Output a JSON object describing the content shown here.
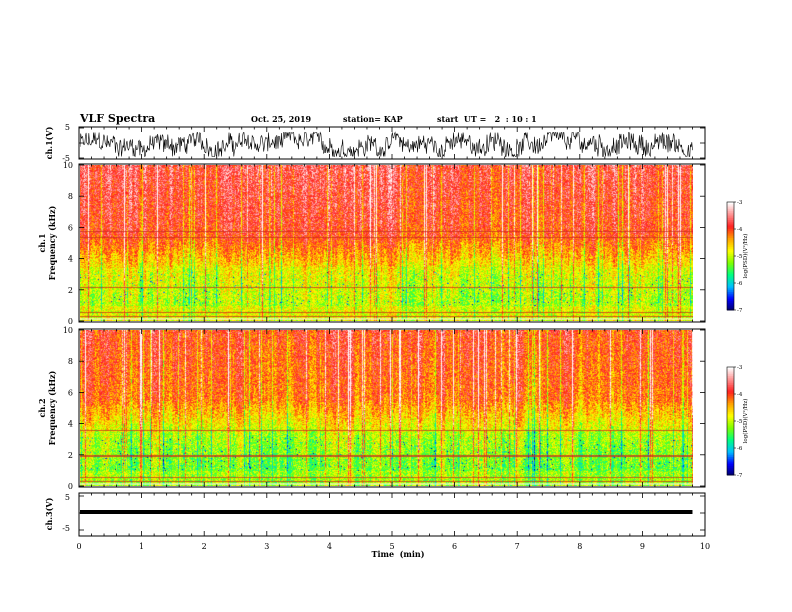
{
  "header": {
    "title": "VLF Spectra",
    "date": "Oct. 25, 2019",
    "station": "station= KAP",
    "start": "start  UT =   2  : 10 : 1"
  },
  "chart_data": [
    {
      "type": "line",
      "panel": "ch1-waveform",
      "ylabel": "ch.1(V)",
      "ylim": [
        -5,
        5
      ],
      "yticks": [
        "5",
        "-5"
      ],
      "xlim": [
        0,
        10
      ],
      "x_extent_min": 9.8,
      "amplitude_range": [
        -4.5,
        3.5
      ]
    },
    {
      "type": "heatmap",
      "panel": "ch1-spectrogram",
      "ylabel": "ch.1\nFrequency  (kHz)",
      "ylim": [
        0,
        10
      ],
      "yticks": [
        "0",
        "2",
        "4",
        "6",
        "8",
        "10"
      ],
      "xlim": [
        0,
        10
      ],
      "x_extent_min": 9.8,
      "colorbar": {
        "label": "log(PSD)(V²/Hz)",
        "range": [
          -7,
          -3
        ],
        "ticks": [
          "-3",
          "-4",
          "-5",
          "-6",
          "-7"
        ],
        "colors": [
          "#000066",
          "#0000ff",
          "#00c0ff",
          "#00ff80",
          "#80ff00",
          "#ffff00",
          "#ffa000",
          "#ff2020",
          "#ff9090",
          "#ffffff"
        ]
      },
      "hum_lines_khz": [
        0.3,
        0.6,
        2.2,
        5.4,
        5.8
      ]
    },
    {
      "type": "heatmap",
      "panel": "ch2-spectrogram",
      "ylabel": "ch.2\nFrequency  (kHz)",
      "ylim": [
        0,
        10
      ],
      "yticks": [
        "0",
        "2",
        "4",
        "6",
        "8",
        "10"
      ],
      "xlim": [
        0,
        10
      ],
      "x_extent_min": 9.8,
      "colorbar": {
        "label": "log(PSD)(V²/Hz)",
        "range": [
          -7,
          -3
        ],
        "ticks": [
          "-3",
          "-4",
          "-5",
          "-6",
          "-7"
        ],
        "colors": [
          "#000066",
          "#0000ff",
          "#00c0ff",
          "#00ff80",
          "#80ff00",
          "#ffff00",
          "#ffa000",
          "#ff2020",
          "#ff9090",
          "#ffffff"
        ]
      },
      "hum_lines_khz": [
        0.3,
        0.6,
        1.9,
        2.0,
        3.6
      ]
    },
    {
      "type": "line",
      "panel": "ch3-waveform",
      "ylabel": "ch.3(V)",
      "ylim": [
        -5,
        5
      ],
      "yticks": [
        "5",
        "-5"
      ],
      "xlim": [
        0,
        10
      ],
      "x_extent_min": 9.8,
      "constant_value": 0
    }
  ],
  "xaxis": {
    "label": "Time  (min)",
    "ticks": [
      "0",
      "1",
      "2",
      "3",
      "4",
      "5",
      "6",
      "7",
      "8",
      "9",
      "10"
    ]
  }
}
